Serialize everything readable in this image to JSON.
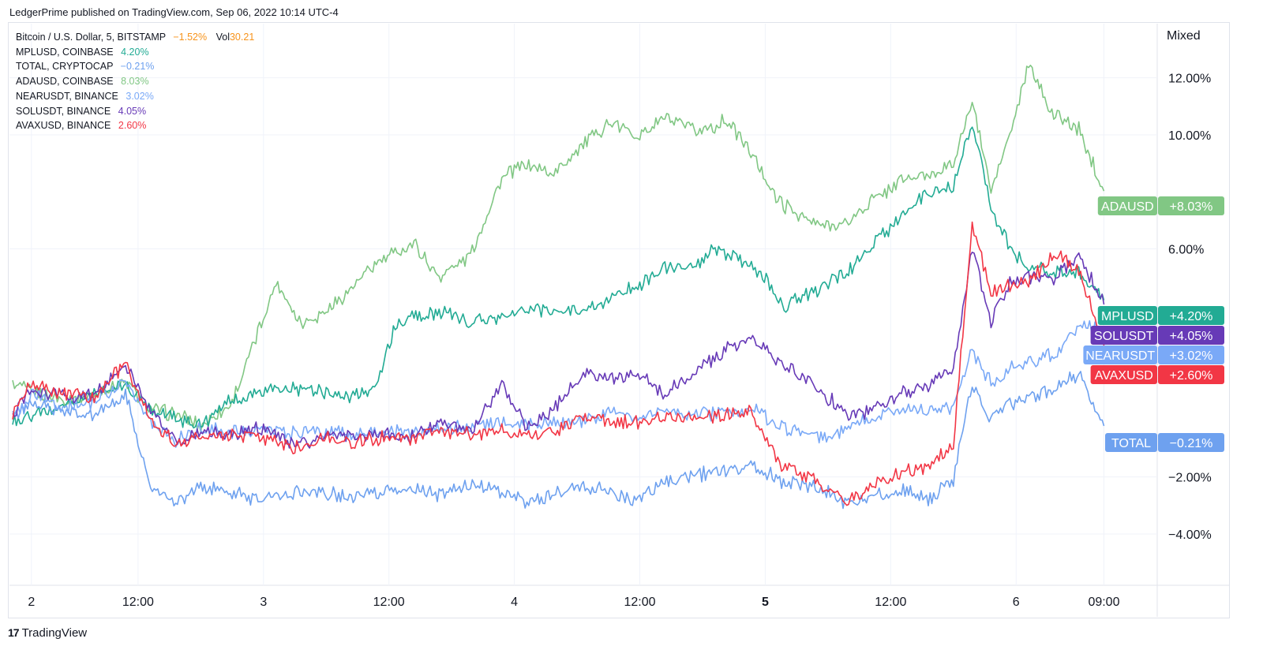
{
  "header": {
    "publisher_line": "LedgerPrime published on TradingView.com, Sep 06, 2022 10:14 UTC-4"
  },
  "legend": {
    "main": {
      "symbol": "Bitcoin / U.S. Dollar, 5, BITSTAMP",
      "change": "−1.52%",
      "vol_label": "Vol",
      "vol_value": "30.21"
    },
    "items": [
      {
        "symbol": "MPLUSD, COINBASE",
        "change": "4.20%",
        "color": "#22ab94"
      },
      {
        "symbol": "TOTAL, CRYPTOCAP",
        "change": "−0.21%",
        "color": "#6ea1ef"
      },
      {
        "symbol": "ADAUSD, COINBASE",
        "change": "8.03%",
        "color": "#81c784"
      },
      {
        "symbol": "NEARUSDT, BINANCE",
        "change": "3.02%",
        "color": "#7aa9f7"
      },
      {
        "symbol": "SOLUSDT, BINANCE",
        "change": "4.05%",
        "color": "#673ab7"
      },
      {
        "symbol": "AVAXUSD, BINANCE",
        "change": "2.60%",
        "color": "#f23645"
      }
    ]
  },
  "scale_mode": "Mixed",
  "footer": {
    "logo_glyph": "17",
    "brand": "TradingView"
  },
  "price_tags": [
    {
      "label": "ADAUSD",
      "value": "+8.03%",
      "color": "#81c784"
    },
    {
      "label": "MPLUSD",
      "value": "+4.20%",
      "color": "#22ab94"
    },
    {
      "label": "SOLUSDT",
      "value": "+4.05%",
      "color": "#673ab7"
    },
    {
      "label": "NEARUSDT",
      "value": "+3.02%",
      "color": "#7aa9f7"
    },
    {
      "label": "AVAXUSD",
      "value": "+2.60%",
      "color": "#f23645"
    },
    {
      "label": "TOTAL",
      "value": "−0.21%",
      "color": "#6ea1ef"
    }
  ],
  "chart_data": {
    "type": "line",
    "y_unit": "%",
    "ylim": [
      -5.0,
      13.5
    ],
    "y_ticks": [
      {
        "value": 12,
        "label": "12.00%"
      },
      {
        "value": 10,
        "label": "10.00%"
      },
      {
        "value": 6,
        "label": "6.00%"
      },
      {
        "value": -2,
        "label": "−2.00%"
      },
      {
        "value": -4,
        "label": "−4.00%"
      }
    ],
    "x_ticks": [
      {
        "t": 0.3,
        "label": "2",
        "bold": false
      },
      {
        "t": 2.0,
        "label": "12:00",
        "bold": false
      },
      {
        "t": 4.0,
        "label": "3",
        "bold": false
      },
      {
        "t": 6.0,
        "label": "12:00",
        "bold": false
      },
      {
        "t": 8.0,
        "label": "4",
        "bold": false
      },
      {
        "t": 10.0,
        "label": "12:00",
        "bold": false
      },
      {
        "t": 12.0,
        "label": "5",
        "bold": true
      },
      {
        "t": 14.0,
        "label": "12:00",
        "bold": false
      },
      {
        "t": 16.0,
        "label": "6",
        "bold": false
      },
      {
        "t": 17.4,
        "label": "09:00",
        "bold": false
      }
    ],
    "grid": true,
    "series": [
      {
        "name": "ADAUSD",
        "color": "#81c784",
        "x": [
          0,
          0.3,
          0.8,
          1.3,
          1.8,
          2.2,
          2.6,
          3.0,
          3.5,
          4.2,
          4.6,
          5.0,
          5.4,
          5.8,
          6.4,
          6.8,
          7.3,
          7.8,
          8.2,
          8.6,
          9.1,
          9.5,
          10.0,
          10.4,
          10.9,
          11.4,
          11.8,
          12.2,
          12.8,
          13.3,
          13.7,
          14.2,
          14.6,
          15.0,
          15.3,
          15.6,
          15.9,
          16.2,
          16.6,
          17.0,
          17.4
        ],
        "y": [
          1.2,
          1.0,
          0.7,
          0.9,
          1.3,
          0.4,
          0.2,
          -0.2,
          0.6,
          4.8,
          3.4,
          3.8,
          4.6,
          5.5,
          6.2,
          5.0,
          5.8,
          8.5,
          9.0,
          8.6,
          9.7,
          10.4,
          10.0,
          10.6,
          10.1,
          10.5,
          9.3,
          7.7,
          6.8,
          6.9,
          7.7,
          8.4,
          8.6,
          9.0,
          11.2,
          8.0,
          10.0,
          12.4,
          10.7,
          10.2,
          8.03
        ]
      },
      {
        "name": "MPLUSD",
        "color": "#22ab94",
        "x": [
          0,
          0.3,
          0.8,
          1.3,
          1.8,
          2.2,
          2.6,
          3.0,
          3.5,
          4.0,
          4.5,
          5.0,
          5.4,
          5.8,
          6.1,
          6.4,
          6.8,
          7.3,
          7.8,
          8.2,
          8.6,
          9.1,
          9.5,
          10.0,
          10.4,
          10.9,
          11.2,
          11.6,
          11.9,
          12.3,
          12.8,
          13.3,
          13.7,
          14.2,
          14.6,
          15.0,
          15.3,
          15.6,
          15.9,
          16.2,
          16.6,
          17.0,
          17.4
        ],
        "y": [
          -0.1,
          0.1,
          0.5,
          0.9,
          1.2,
          0.4,
          0.1,
          -0.2,
          0.7,
          1.0,
          1.1,
          1.0,
          0.8,
          1.2,
          3.3,
          3.6,
          3.8,
          3.4,
          3.6,
          3.9,
          3.8,
          3.9,
          4.2,
          4.8,
          5.3,
          5.4,
          6.0,
          5.6,
          5.2,
          4.0,
          4.5,
          5.2,
          6.1,
          7.2,
          8.0,
          8.2,
          10.5,
          7.5,
          6.0,
          5.3,
          5.2,
          5.2,
          4.2
        ]
      },
      {
        "name": "SOLUSDT",
        "color": "#673ab7",
        "x": [
          0,
          0.3,
          0.8,
          1.3,
          1.8,
          2.2,
          2.6,
          3.0,
          3.5,
          4.0,
          4.5,
          5.0,
          5.4,
          5.8,
          6.4,
          6.8,
          7.3,
          7.8,
          8.2,
          8.6,
          9.1,
          9.5,
          10.0,
          10.4,
          10.9,
          11.4,
          11.8,
          12.2,
          12.8,
          13.3,
          13.7,
          14.2,
          14.6,
          15.0,
          15.3,
          15.6,
          15.9,
          16.2,
          16.6,
          17.0,
          17.4
        ],
        "y": [
          0.2,
          1.0,
          0.8,
          0.9,
          2.0,
          0.3,
          -0.8,
          -0.4,
          -0.5,
          -0.3,
          -0.9,
          -0.5,
          -0.6,
          -0.5,
          -0.6,
          0.0,
          -0.5,
          1.2,
          -0.2,
          0.3,
          1.6,
          1.5,
          1.5,
          0.9,
          1.7,
          2.5,
          2.9,
          2.1,
          1.2,
          0.2,
          0.3,
          1.0,
          1.2,
          1.8,
          6.0,
          3.5,
          4.8,
          5.0,
          5.0,
          5.8,
          4.05
        ]
      },
      {
        "name": "AVAXUSD",
        "color": "#f23645",
        "x": [
          0,
          0.3,
          0.8,
          1.3,
          1.8,
          2.2,
          2.6,
          3.0,
          3.5,
          4.0,
          4.5,
          5.0,
          5.4,
          5.8,
          6.4,
          6.8,
          7.3,
          7.8,
          8.2,
          8.6,
          9.1,
          9.5,
          10.0,
          10.4,
          10.9,
          11.4,
          11.8,
          12.2,
          12.8,
          13.3,
          13.7,
          14.2,
          14.6,
          15.0,
          15.3,
          15.6,
          15.9,
          16.2,
          16.6,
          17.0,
          17.4
        ],
        "y": [
          0.3,
          1.2,
          0.9,
          0.8,
          2.0,
          0.0,
          -0.9,
          -0.5,
          -0.6,
          -0.6,
          -1.0,
          -0.6,
          -0.8,
          -0.6,
          -0.7,
          -0.4,
          -0.5,
          -0.3,
          -0.6,
          -0.4,
          0.1,
          0.0,
          -0.1,
          0.1,
          0.0,
          0.2,
          0.3,
          -1.5,
          -2.1,
          -2.9,
          -2.3,
          -1.8,
          -1.6,
          -0.9,
          6.9,
          4.5,
          4.7,
          4.8,
          5.8,
          5.3,
          2.6
        ]
      },
      {
        "name": "NEARUSDT",
        "color": "#7aa9f7",
        "x": [
          0,
          0.3,
          0.8,
          1.3,
          1.8,
          2.2,
          2.6,
          3.0,
          3.5,
          4.0,
          4.5,
          5.0,
          5.4,
          5.8,
          6.4,
          6.8,
          7.3,
          7.8,
          8.2,
          8.6,
          9.1,
          9.5,
          10.0,
          10.4,
          10.9,
          11.4,
          11.8,
          12.2,
          12.8,
          13.3,
          13.7,
          14.2,
          14.6,
          15.0,
          15.3,
          15.6,
          15.9,
          16.2,
          16.6,
          17.0,
          17.4
        ],
        "y": [
          0.0,
          0.9,
          0.5,
          0.6,
          1.4,
          -0.1,
          -0.7,
          -0.3,
          -0.4,
          -0.3,
          -0.5,
          -0.4,
          -0.5,
          -0.4,
          -0.5,
          -0.3,
          -0.2,
          -0.1,
          -0.2,
          -0.1,
          0.0,
          0.2,
          0.1,
          0.3,
          0.2,
          0.3,
          0.4,
          -0.2,
          -0.6,
          -0.4,
          0.1,
          0.4,
          0.3,
          0.5,
          2.5,
          1.3,
          1.8,
          2.0,
          2.3,
          3.4,
          3.02
        ]
      },
      {
        "name": "TOTAL",
        "color": "#6ea1ef",
        "x": [
          0,
          0.3,
          0.8,
          1.3,
          1.8,
          2.2,
          2.6,
          3.0,
          3.5,
          4.0,
          4.5,
          5.0,
          5.4,
          5.8,
          6.4,
          6.8,
          7.3,
          7.8,
          8.2,
          8.6,
          9.1,
          9.5,
          10.0,
          10.4,
          10.9,
          11.4,
          11.8,
          12.2,
          12.8,
          13.3,
          13.7,
          14.2,
          14.6,
          15.0,
          15.3,
          15.6,
          15.9,
          16.2,
          16.6,
          17.0,
          17.4
        ],
        "y": [
          0.1,
          0.6,
          0.3,
          0.2,
          0.9,
          -2.4,
          -2.9,
          -2.3,
          -2.6,
          -2.8,
          -2.5,
          -2.6,
          -2.7,
          -2.6,
          -2.4,
          -2.6,
          -2.2,
          -2.5,
          -2.9,
          -2.6,
          -2.3,
          -2.5,
          -2.8,
          -2.2,
          -1.9,
          -1.8,
          -1.6,
          -2.1,
          -2.3,
          -2.9,
          -2.7,
          -2.5,
          -2.8,
          -2.1,
          1.3,
          0.0,
          0.6,
          0.8,
          1.1,
          1.6,
          -0.21
        ]
      }
    ]
  }
}
